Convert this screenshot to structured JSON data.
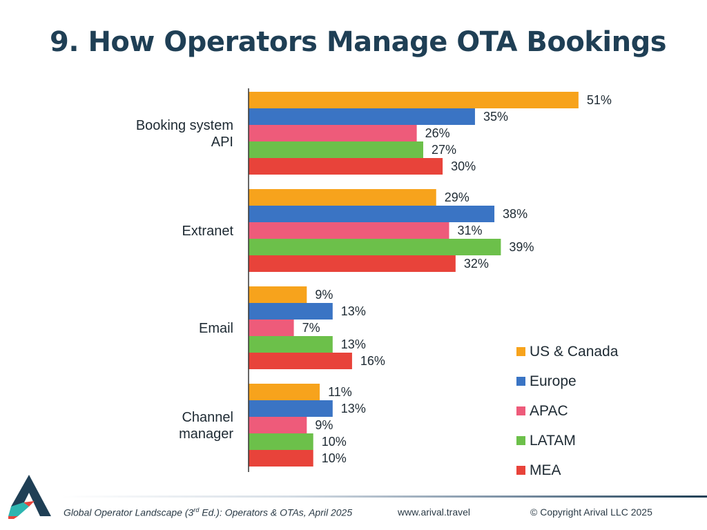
{
  "title": "9. How Operators Manage OTA Bookings",
  "chart_data": {
    "type": "bar",
    "orientation": "horizontal",
    "categories": [
      [
        "Booking system",
        "API"
      ],
      [
        "Extranet"
      ],
      [
        "Email"
      ],
      [
        "Channel",
        "manager"
      ]
    ],
    "series": [
      {
        "name": "US & Canada",
        "color": "#f7a31c",
        "values": [
          51,
          29,
          9,
          11
        ]
      },
      {
        "name": "Europe",
        "color": "#3a74c4",
        "values": [
          35,
          38,
          13,
          13
        ]
      },
      {
        "name": "APAC",
        "color": "#ee5b7a",
        "values": [
          26,
          31,
          7,
          9
        ]
      },
      {
        "name": "LATAM",
        "color": "#6cc04a",
        "values": [
          27,
          39,
          13,
          10
        ]
      },
      {
        "name": "MEA",
        "color": "#e8433a",
        "values": [
          30,
          32,
          16,
          10
        ]
      }
    ],
    "value_suffix": "%",
    "grid": false,
    "legend_position": "bottom-right"
  },
  "footer": {
    "source_pre": "Global Operator Landscape (3",
    "source_sup": "rd",
    "source_post": " Ed.):  Operators & OTAs, April 2025",
    "website": "www.arival.travel",
    "copyright": "© Copyright Arival LLC 2025"
  },
  "colors": {
    "title": "#1f3f55",
    "axis": "#333333",
    "logo_dark": "#1f3f55",
    "logo_accent": "#2eb5b0",
    "logo_red": "#e8433a"
  }
}
